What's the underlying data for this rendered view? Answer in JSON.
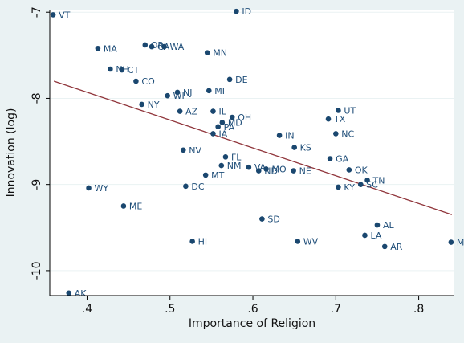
{
  "chart_data": {
    "type": "scatter",
    "title": "",
    "xlabel": "Importance of Religion",
    "ylabel": "Innovation (log)",
    "xlim": [
      0.355,
      0.843
    ],
    "ylim": [
      -10.29,
      -6.97
    ],
    "xticks": [
      0.4,
      0.5,
      0.6,
      0.7,
      0.8
    ],
    "xtick_labels": [
      ".4",
      ".5",
      ".6",
      ".7",
      ".8"
    ],
    "yticks": [
      -7,
      -8,
      -9,
      -10
    ],
    "ytick_labels": [
      "-7",
      "-8",
      "-9",
      "-10"
    ],
    "grid": true,
    "legend": "none",
    "colors": {
      "marker": "#1a476f",
      "label": "#1f4e79",
      "fit_line": "#90353b",
      "plot_bg": "#ffffff",
      "outer_bg": "#eaf2f3",
      "grid": "#eaf2f3"
    },
    "fit_line": {
      "x": [
        0.36,
        0.84
      ],
      "y": [
        -7.8,
        -9.35
      ]
    },
    "points": [
      {
        "label": "VT",
        "x": 0.359,
        "y": -7.03
      },
      {
        "label": "ID",
        "x": 0.58,
        "y": -6.99
      },
      {
        "label": "MA",
        "x": 0.413,
        "y": -7.42
      },
      {
        "label": "OR",
        "x": 0.47,
        "y": -7.38
      },
      {
        "label": "CA",
        "x": 0.478,
        "y": -7.4
      },
      {
        "label": "WA",
        "x": 0.493,
        "y": -7.4
      },
      {
        "label": "MN",
        "x": 0.545,
        "y": -7.47
      },
      {
        "label": "NH",
        "x": 0.428,
        "y": -7.66
      },
      {
        "label": "CT",
        "x": 0.442,
        "y": -7.67
      },
      {
        "label": "CO",
        "x": 0.459,
        "y": -7.8
      },
      {
        "label": "DE",
        "x": 0.572,
        "y": -7.78
      },
      {
        "label": "NJ",
        "x": 0.509,
        "y": -7.93
      },
      {
        "label": "MI",
        "x": 0.547,
        "y": -7.91
      },
      {
        "label": "WI",
        "x": 0.497,
        "y": -7.97
      },
      {
        "label": "NY",
        "x": 0.466,
        "y": -8.07
      },
      {
        "label": "AZ",
        "x": 0.512,
        "y": -8.15
      },
      {
        "label": "IL",
        "x": 0.552,
        "y": -8.15
      },
      {
        "label": "OH",
        "x": 0.575,
        "y": -8.22
      },
      {
        "label": "MD",
        "x": 0.563,
        "y": -8.28
      },
      {
        "label": "PA",
        "x": 0.558,
        "y": -8.33
      },
      {
        "label": "IA",
        "x": 0.552,
        "y": -8.41
      },
      {
        "label": "UT",
        "x": 0.703,
        "y": -8.14
      },
      {
        "label": "TX",
        "x": 0.691,
        "y": -8.24
      },
      {
        "label": "NC",
        "x": 0.7,
        "y": -8.41
      },
      {
        "label": "IN",
        "x": 0.632,
        "y": -8.43
      },
      {
        "label": "KS",
        "x": 0.65,
        "y": -8.57
      },
      {
        "label": "NV",
        "x": 0.516,
        "y": -8.6
      },
      {
        "label": "FL",
        "x": 0.567,
        "y": -8.68
      },
      {
        "label": "GA",
        "x": 0.693,
        "y": -8.7
      },
      {
        "label": "NM",
        "x": 0.562,
        "y": -8.78
      },
      {
        "label": "VA",
        "x": 0.595,
        "y": -8.8
      },
      {
        "label": "ND",
        "x": 0.607,
        "y": -8.84
      },
      {
        "label": "MO",
        "x": 0.616,
        "y": -8.82
      },
      {
        "label": "NE",
        "x": 0.649,
        "y": -8.84
      },
      {
        "label": "OK",
        "x": 0.716,
        "y": -8.83
      },
      {
        "label": "MT",
        "x": 0.543,
        "y": -8.89
      },
      {
        "label": "TN",
        "x": 0.738,
        "y": -8.95
      },
      {
        "label": "SC",
        "x": 0.73,
        "y": -9.0
      },
      {
        "label": "DC",
        "x": 0.519,
        "y": -9.02
      },
      {
        "label": "KY",
        "x": 0.703,
        "y": -9.03
      },
      {
        "label": "WY",
        "x": 0.402,
        "y": -9.04
      },
      {
        "label": "ME",
        "x": 0.444,
        "y": -9.25
      },
      {
        "label": "SD",
        "x": 0.611,
        "y": -9.4
      },
      {
        "label": "AL",
        "x": 0.75,
        "y": -9.47
      },
      {
        "label": "LA",
        "x": 0.735,
        "y": -9.59
      },
      {
        "label": "HI",
        "x": 0.527,
        "y": -9.66
      },
      {
        "label": "WV",
        "x": 0.654,
        "y": -9.66
      },
      {
        "label": "MS",
        "x": 0.839,
        "y": -9.67
      },
      {
        "label": "AR",
        "x": 0.759,
        "y": -9.72
      },
      {
        "label": "AK",
        "x": 0.378,
        "y": -10.26
      }
    ]
  }
}
